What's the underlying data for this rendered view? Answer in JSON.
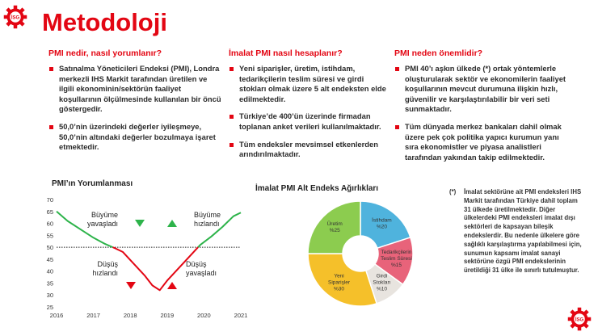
{
  "header": {
    "title": "Metodoloji",
    "logo_text": "İSG"
  },
  "columns": [
    {
      "heading": "PMI nedir, nasıl yorumlanır?",
      "items": [
        "Satınalma Yöneticileri Endeksi (PMI), Londra merkezli IHS Markit tarafından üretilen ve ilgili ekonominin/sektörün faaliyet koşullarının ölçülmesinde kullanılan bir öncü göstergedir.",
        "50,0’nin üzerindeki değerler iyileşmeye, 50,0’nin altındaki değerler bozulmaya işaret etmektedir."
      ]
    },
    {
      "heading": "İmalat PMI nasıl hesaplanır?",
      "items": [
        "Yeni siparişler, üretim, istihdam, tedarikçilerin teslim süresi ve girdi stokları olmak üzere 5 alt endeksten elde edilmektedir.",
        "Türkiye’de 400’ün üzerinde firmadan toplanan anket verileri kullanılmaktadır.",
        "Tüm endeksler mevsimsel etkenlerden arındırılmaktadır."
      ]
    },
    {
      "heading": "PMI neden önemlidir?",
      "items": [
        "PMI 40’ı aşkın ülkede (*) ortak yöntemlerle oluşturularak sektör ve ekonomilerin faaliyet koşullarının mevcut durumuna ilişkin hızlı, güvenilir ve karşılaştırılabilir bir veri seti sunmaktadır.",
        "Tüm dünyada merkez bankaları dahil olmak üzere pek çok politika yapıcı kurumun yanı sıra ekonomistler ve piyasa analistleri tarafından yakından takip edilmektedir."
      ]
    }
  ],
  "colors": {
    "accent": "#e30613",
    "green": "#2db34a",
    "red": "#e30613"
  },
  "chart_data": [
    {
      "type": "line",
      "title": "PMI’ın Yorumlanması",
      "xlabel": "",
      "ylabel": "",
      "x_ticks": [
        "2016",
        "2017",
        "2018",
        "2019",
        "2020",
        "2021"
      ],
      "y_ticks": [
        70,
        65,
        60,
        55,
        50,
        45,
        40,
        35,
        30,
        25
      ],
      "ylim": [
        25,
        70
      ],
      "xlim": [
        2016,
        2021
      ],
      "threshold": 50,
      "grid": false,
      "annotations": [
        {
          "text": "Büyüme yavaşladı",
          "arrow": "down",
          "color": "green"
        },
        {
          "text": "Büyüme hızlandı",
          "arrow": "up",
          "color": "green"
        },
        {
          "text": "Düşüş hızlandı",
          "arrow": "down",
          "color": "red"
        },
        {
          "text": "Düşüş yavaşladı",
          "arrow": "up",
          "color": "red"
        }
      ],
      "series": [
        {
          "x": [
            2016.0,
            2016.3,
            2016.7,
            2017.0,
            2017.3,
            2017.6,
            2017.8,
            2018.1,
            2018.4,
            2018.6,
            2018.8,
            2019.0,
            2019.3,
            2019.6,
            2019.9,
            2020.2,
            2020.5,
            2020.8,
            2021.0
          ],
          "y": [
            65,
            61,
            57,
            54,
            51.5,
            49.5,
            48,
            43,
            38,
            34,
            32,
            36,
            41,
            46,
            51,
            54.5,
            58.5,
            63,
            64.5
          ]
        }
      ]
    },
    {
      "type": "pie",
      "title": "İmalat PMI Alt Endeks Ağırlıkları",
      "slices": [
        {
          "label": "İstihdam",
          "value_label": "%20",
          "value": 20,
          "color": "#4fb3dd"
        },
        {
          "label": "Tedarikçilerin Teslim Süresi",
          "value_label": "%15",
          "value": 15,
          "color": "#e8637a"
        },
        {
          "label": "Girdi Stokları",
          "value_label": "%10",
          "value": 10,
          "color": "#e8e4df"
        },
        {
          "label": "Yeni Siparişler",
          "value_label": "%30",
          "value": 30,
          "color": "#f5c02a"
        },
        {
          "label": "Üretim",
          "value_label": "%25",
          "value": 25,
          "color": "#8ccc4f"
        }
      ]
    }
  ],
  "footnote": {
    "marker": "(*)",
    "text": "İmalat sektörüne ait PMI endeksleri IHS Markit tarafından Türkiye dahil toplam 31 ülkede üretilmektedir. Diğer ülkelerdeki PMI endeksleri imalat dışı sektörleri de kapsayan bileşik endekslerdir. Bu nedenle ülkelere göre sağlıklı karşılaştırma yapılabilmesi için, sunumun kapsamı imalat sanayi sektörüne özgü PMI endekslerinin üretildiği 31 ülke ile sınırlı tutulmuştur."
  }
}
